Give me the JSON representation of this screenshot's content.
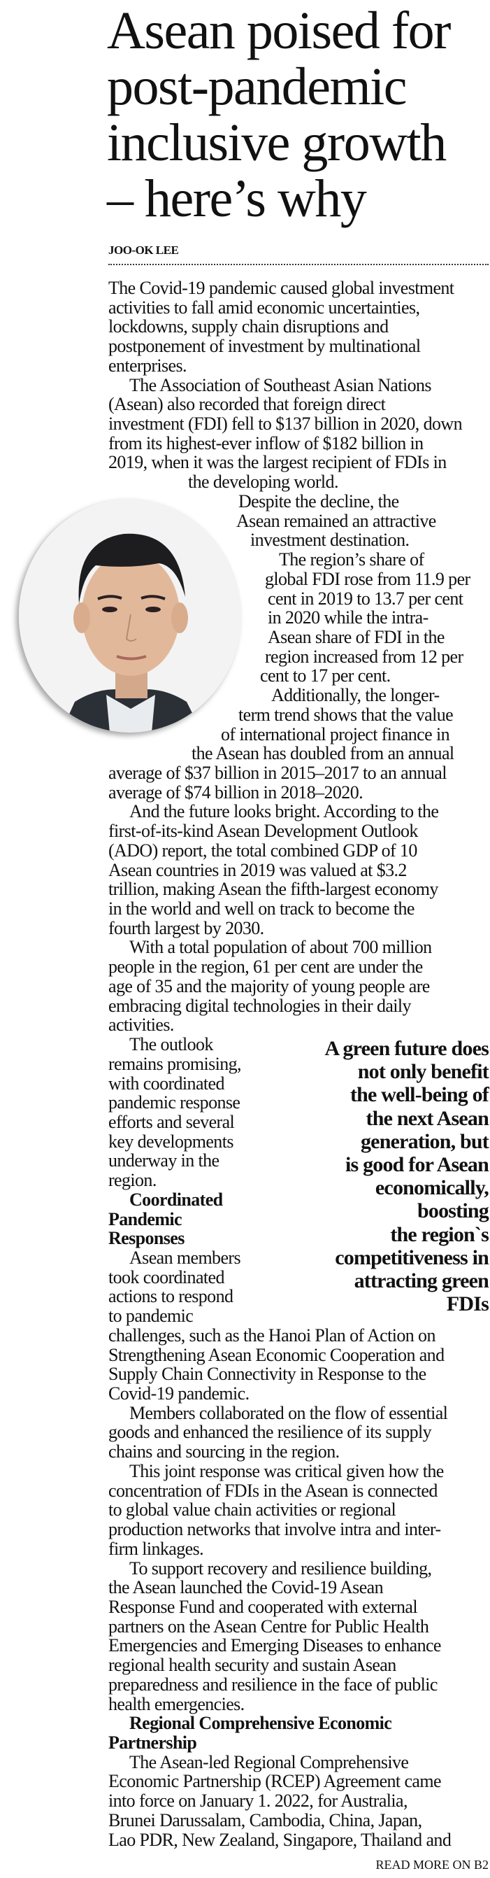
{
  "headline": {
    "lines": [
      "Asean poised for",
      "post-pandemic",
      "inclusive growth",
      "– here’s why"
    ]
  },
  "byline": "JOO-OK LEE",
  "photo": {
    "subject": "author-portrait"
  },
  "body_lines": [
    "The Covid-19 pandemic caused global investment",
    "activities to fall amid economic uncertainties,",
    "lockdowns, supply chain disruptions and",
    "postponement of investment by multinational",
    "enterprises.",
    "The Association of Southeast Asian Nations",
    "(Asean) also recorded that foreign direct",
    "investment (FDI) fell to $137 billion in 2020, down",
    "from its highest-ever inflow of $182 billion in",
    "2019, when it was the largest recipient of FDIs in",
    "the developing world.",
    "Despite the decline, the",
    "Asean remained an attractive",
    "investment destination.",
    "The region’s share of",
    "global FDI rose from 11.9 per",
    "cent in 2019 to 13.7 per cent",
    "in 2020 while the intra-",
    "Asean share of FDI in the",
    "region increased from 12 per",
    "cent to 17 per cent.",
    "Additionally, the longer-",
    "term trend shows that the value",
    "of international project finance in",
    "the Asean has doubled from an annual",
    "average of $37 billion in 2015–2017 to an annual",
    "average of $74 billion in 2018–2020.",
    "And the future looks bright. According to the",
    "first-of-its-kind Asean Development Outlook",
    "(ADO) report, the total combined GDP of 10",
    "Asean countries in 2019 was valued at $3.2",
    "trillion, making Asean the fifth-largest economy",
    "in the world and well on track to become the",
    "fourth largest by 2030.",
    "With a total population of about 700 million",
    "people in the region, 61 per cent are under the",
    "age of 35 and the majority of young people are",
    "embracing digital technologies in their daily",
    "activities.",
    "The outlook",
    "remains promising,",
    "with coordinated",
    "pandemic response",
    "efforts and several",
    "key developments",
    "underway in the",
    "region.",
    "Coordinated",
    "Pandemic",
    "Responses",
    "Asean members",
    "took coordinated",
    "actions to respond",
    "to pandemic",
    "challenges, such as the Hanoi Plan of Action on",
    "Strengthening Asean Economic Cooperation and",
    "Supply Chain Connectivity in Response to the",
    "Covid-19 pandemic.",
    "Members collaborated on the flow of essential",
    "goods and enhanced the resilience of its supply",
    "chains and sourcing in the region.",
    "This joint response was critical given how the",
    "concentration of FDIs in the Asean is connected",
    "to global value chain activities or regional",
    "production networks that involve intra and inter-",
    "firm linkages.",
    "To support recovery and resilience building,",
    "the Asean launched the Covid-19 Asean",
    "Response Fund and cooperated with external",
    "partners on the Asean Centre for Public Health",
    "Emergencies and Emerging Diseases to enhance",
    "regional health security and sustain Asean",
    "preparedness and resilience in the face of public",
    "health emergencies.",
    "Regional Comprehensive Economic",
    "Partnership",
    "The Asean-led Regional Comprehensive",
    "Economic Partnership (RCEP) Agreement came",
    "into force on January 1. 2022, for Australia,",
    "Brunei Darussalam, Cambodia, China, Japan,",
    "Lao PDR, New Zealand, Singapore, Thailand and"
  ],
  "pull_quote": {
    "lines": [
      "A green future does",
      "not only benefit",
      "the well-being of",
      "the next Asean",
      "generation, but",
      "is good for Asean",
      "economically,",
      "boosting",
      "the region`s",
      "competitiveness in",
      "attracting green",
      "FDIs"
    ]
  },
  "read_more": "READ MORE ON B2"
}
